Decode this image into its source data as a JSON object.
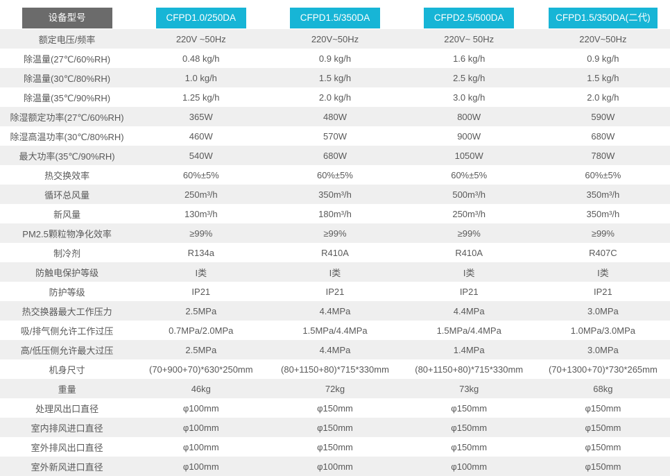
{
  "colors": {
    "accent_cyan": "#17b5d6",
    "header_dark_gray": "#6b6b6b",
    "stripe_gray": "#efefef",
    "text_gray": "#595959"
  },
  "table": {
    "header": {
      "label": "设备型号",
      "models": [
        "CFPD1.0/250DA",
        "CFPD1.5/350DA",
        "CFPD2.5/500DA",
        "CFPD1.5/350DA(二代)"
      ]
    },
    "rows": [
      {
        "label": "额定电压/频率",
        "values": [
          "220V ~50Hz",
          "220V~50Hz",
          "220V~ 50Hz",
          "220V~50Hz"
        ]
      },
      {
        "label": "除温量(27℃/60%RH)",
        "values": [
          "0.48 kg/h",
          "0.9 kg/h",
          "1.6 kg/h",
          "0.9 kg/h"
        ]
      },
      {
        "label": "除温量(30℃/80%RH)",
        "values": [
          "1.0 kg/h",
          "1.5 kg/h",
          "2.5 kg/h",
          "1.5 kg/h"
        ]
      },
      {
        "label": "除温量(35℃/90%RH)",
        "values": [
          "1.25 kg/h",
          "2.0 kg/h",
          "3.0 kg/h",
          "2.0 kg/h"
        ]
      },
      {
        "label": "除湿额定功率(27℃/60%RH)",
        "values": [
          "365W",
          "480W",
          "800W",
          "590W"
        ]
      },
      {
        "label": "除湿高温功率(30℃/80%RH)",
        "values": [
          "460W",
          "570W",
          "900W",
          "680W"
        ]
      },
      {
        "label": "最大功率(35℃/90%RH)",
        "values": [
          "540W",
          "680W",
          "1050W",
          "780W"
        ]
      },
      {
        "label": "热交换效率",
        "values": [
          "60%±5%",
          "60%±5%",
          "60%±5%",
          "60%±5%"
        ]
      },
      {
        "label": "循环总风量",
        "values": [
          "250m³/h",
          "350m³/h",
          "500m³/h",
          "350m³/h"
        ]
      },
      {
        "label": "新风量",
        "values": [
          "130m³/h",
          "180m³/h",
          "250m³/h",
          "350m³/h"
        ]
      },
      {
        "label": "PM2.5颗粒物净化效率",
        "values": [
          "≥99%",
          "≥99%",
          "≥99%",
          "≥99%"
        ]
      },
      {
        "label": "制冷剂",
        "values": [
          "R134a",
          "R410A",
          "R410A",
          "R407C"
        ]
      },
      {
        "label": "防触电保护等级",
        "values": [
          "I类",
          "I类",
          "I类",
          "I类"
        ]
      },
      {
        "label": "防护等级",
        "values": [
          "IP21",
          "IP21",
          "IP21",
          "IP21"
        ]
      },
      {
        "label": "热交换器最大工作压力",
        "values": [
          "2.5MPa",
          "4.4MPa",
          "4.4MPa",
          "3.0MPa"
        ]
      },
      {
        "label": "吸/排气侧允许工作过压",
        "values": [
          "0.7MPa/2.0MPa",
          "1.5MPa/4.4MPa",
          "1.5MPa/4.4MPa",
          "1.0MPa/3.0MPa"
        ]
      },
      {
        "label": "高/低压侧允许最大过压",
        "values": [
          "2.5MPa",
          "4.4MPa",
          "1.4MPa",
          "3.0MPa"
        ]
      },
      {
        "label": "机身尺寸",
        "values": [
          "(70+900+70)*630*250mm",
          "(80+1150+80)*715*330mm",
          "(80+1150+80)*715*330mm",
          "(70+1300+70)*730*265mm"
        ]
      },
      {
        "label": "重量",
        "values": [
          "46kg",
          "72kg",
          "73kg",
          "68kg"
        ]
      },
      {
        "label": "处理风出口直径",
        "values": [
          "φ100mm",
          "φ150mm",
          "φ150mm",
          "φ150mm"
        ]
      },
      {
        "label": "室内排风进口直径",
        "values": [
          "φ100mm",
          "φ150mm",
          "φ150mm",
          "φ150mm"
        ]
      },
      {
        "label": "室外排风出口直径",
        "values": [
          "φ100mm",
          "φ150mm",
          "φ150mm",
          "φ150mm"
        ]
      },
      {
        "label": "室外新风进口直径",
        "values": [
          "φ100mm",
          "φ100mm",
          "φ100mm",
          "φ150mm"
        ]
      }
    ]
  }
}
